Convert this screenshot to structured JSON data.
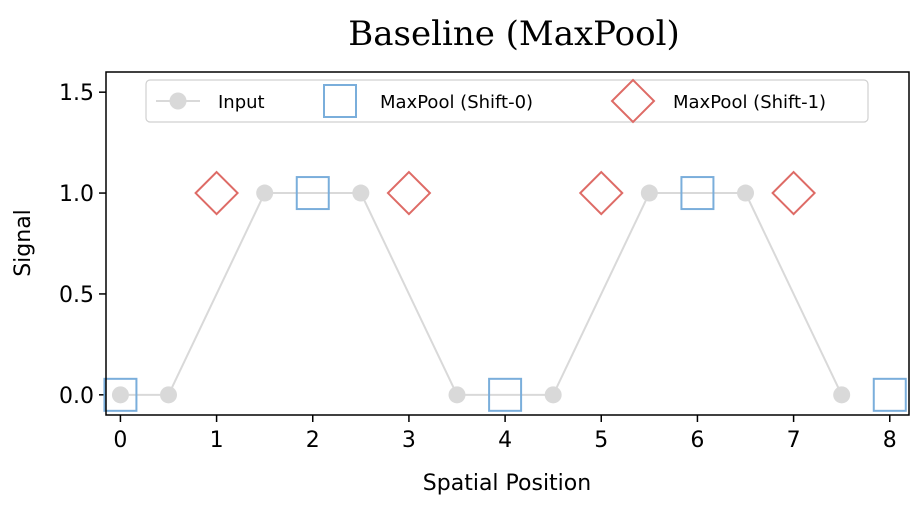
{
  "chart_data": {
    "type": "line",
    "title": "Baseline (MaxPool)",
    "xlabel": "Spatial Position",
    "ylabel": "Signal",
    "xlim": [
      -0.15,
      8.2
    ],
    "ylim": [
      -0.1,
      1.6
    ],
    "xticks": [
      0,
      1,
      2,
      3,
      4,
      5,
      6,
      7,
      8
    ],
    "xtick_labels": [
      "0",
      "1",
      "2",
      "3",
      "4",
      "5",
      "6",
      "7",
      "8"
    ],
    "yticks": [
      0.0,
      0.5,
      1.0,
      1.5
    ],
    "ytick_labels": [
      "0.0",
      "0.5",
      "1.0",
      "1.5"
    ],
    "grid": false,
    "legend_position": "top-center",
    "series": [
      {
        "name": "Input",
        "marker": "circle",
        "line": true,
        "color": "#d9d9d9",
        "x": [
          0,
          0.5,
          1.5,
          2.5,
          3.5,
          4.5,
          5.5,
          6.5,
          7.5
        ],
        "y": [
          0,
          0,
          1,
          1,
          0,
          0,
          1,
          1,
          0
        ]
      },
      {
        "name": "MaxPool (Shift-0)",
        "marker": "square",
        "line": false,
        "color": "#7aaedb",
        "x": [
          0,
          2,
          4,
          6,
          8
        ],
        "y": [
          0,
          1,
          0,
          1,
          0
        ]
      },
      {
        "name": "MaxPool (Shift-1)",
        "marker": "diamond",
        "line": false,
        "color": "#de6b66",
        "x": [
          1,
          3,
          5,
          7
        ],
        "y": [
          1,
          1,
          1,
          1
        ]
      }
    ]
  }
}
